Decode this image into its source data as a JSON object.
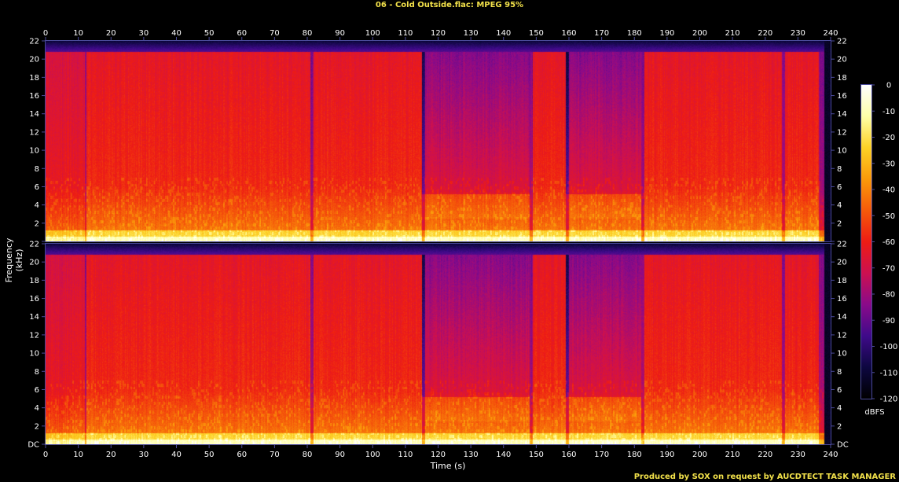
{
  "title": "06 - Cold Outside.flac: MPEG 95%",
  "footer": "Produced by SOX on request by AUCDTECT TASK MANAGER",
  "colors": {
    "background": "#000000",
    "title_text": "#f2e14a",
    "axis": "#4a4a9a",
    "palette": [
      "#000000",
      "#0d0740",
      "#3f0a8a",
      "#8a0a8a",
      "#cc1050",
      "#ee1c14",
      "#f55a0a",
      "#fb9a0a",
      "#fdd226",
      "#ffffa8",
      "#ffffff"
    ]
  },
  "chart_data": {
    "type": "heatmap",
    "title": "06 - Cold Outside.flac: MPEG 95%",
    "xlabel": "Time (s)",
    "ylabel": "Frequency (kHz)",
    "xlim": [
      0,
      240
    ],
    "x_ticks": [
      0,
      10,
      20,
      30,
      40,
      50,
      60,
      70,
      80,
      90,
      100,
      110,
      120,
      130,
      140,
      150,
      160,
      170,
      180,
      190,
      200,
      210,
      220,
      230,
      240
    ],
    "ylim": [
      0,
      22
    ],
    "y_ticks": [
      "DC",
      "2",
      "4",
      "6",
      "8",
      "10",
      "12",
      "14",
      "16",
      "18",
      "20",
      "22"
    ],
    "colorbar": {
      "label": "dBFS",
      "range": [
        -120,
        0
      ],
      "ticks": [
        "0",
        "-10",
        "-20",
        "-30",
        "-40",
        "-50",
        "-60",
        "-70",
        "-80",
        "-90",
        "-100",
        "-110",
        "-120"
      ]
    },
    "channels": 2,
    "audio_end_s": 238,
    "lowpass_cutoff_khz": 20.8,
    "quiet_regions_s": [
      [
        115,
        148
      ],
      [
        159,
        182
      ]
    ],
    "gaps_s": [
      [
        12,
        12.6
      ],
      [
        81,
        82
      ],
      [
        115,
        116
      ],
      [
        148,
        149
      ],
      [
        159,
        160
      ],
      [
        182,
        183
      ],
      [
        225,
        226
      ],
      [
        236.5,
        240
      ]
    ]
  }
}
